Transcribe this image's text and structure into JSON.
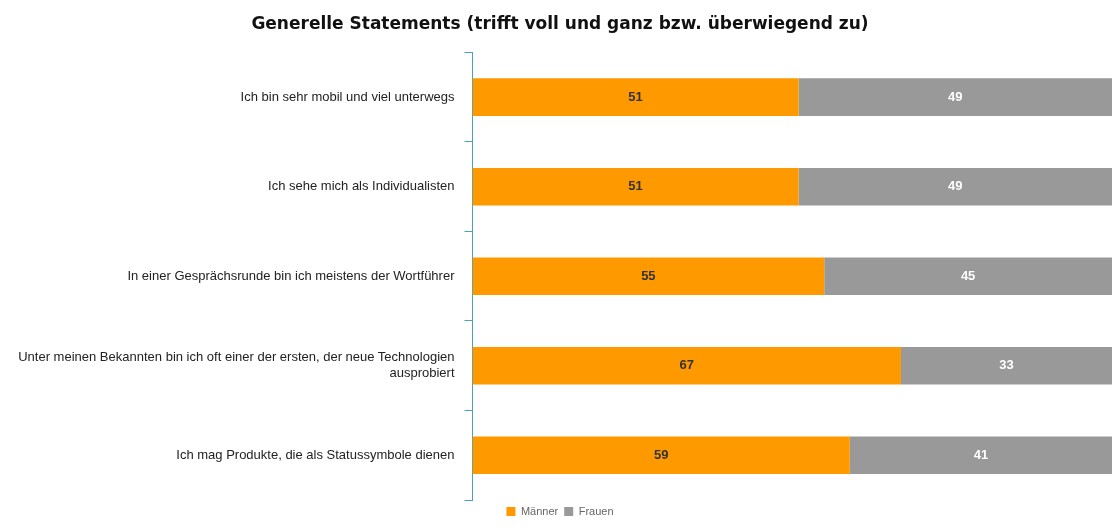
{
  "chart_data": {
    "type": "bar",
    "orientation": "horizontal",
    "stacked": true,
    "data_labels": true,
    "legend": "bottom",
    "grid": false,
    "title": "Generelle Statements (trifft voll und ganz bzw. überwiegend zu)",
    "categories": [
      "Ich bin sehr mobil und viel unterwegs",
      "Ich sehe mich als Individualisten",
      "In einer Gesprächsrunde bin ich meistens der Wortführer",
      "Unter meinen Bekannten bin ich oft einer der ersten, der neue Technologien ausprobiert",
      "Ich mag Produkte, die als Statussymbole dienen"
    ],
    "series": [
      {
        "name": "Männer",
        "color": "#ff9900",
        "values": [
          51,
          51,
          55,
          67,
          59
        ]
      },
      {
        "name": "Frauen",
        "color": "#999999",
        "values": [
          49,
          49,
          45,
          33,
          41
        ]
      }
    ]
  }
}
